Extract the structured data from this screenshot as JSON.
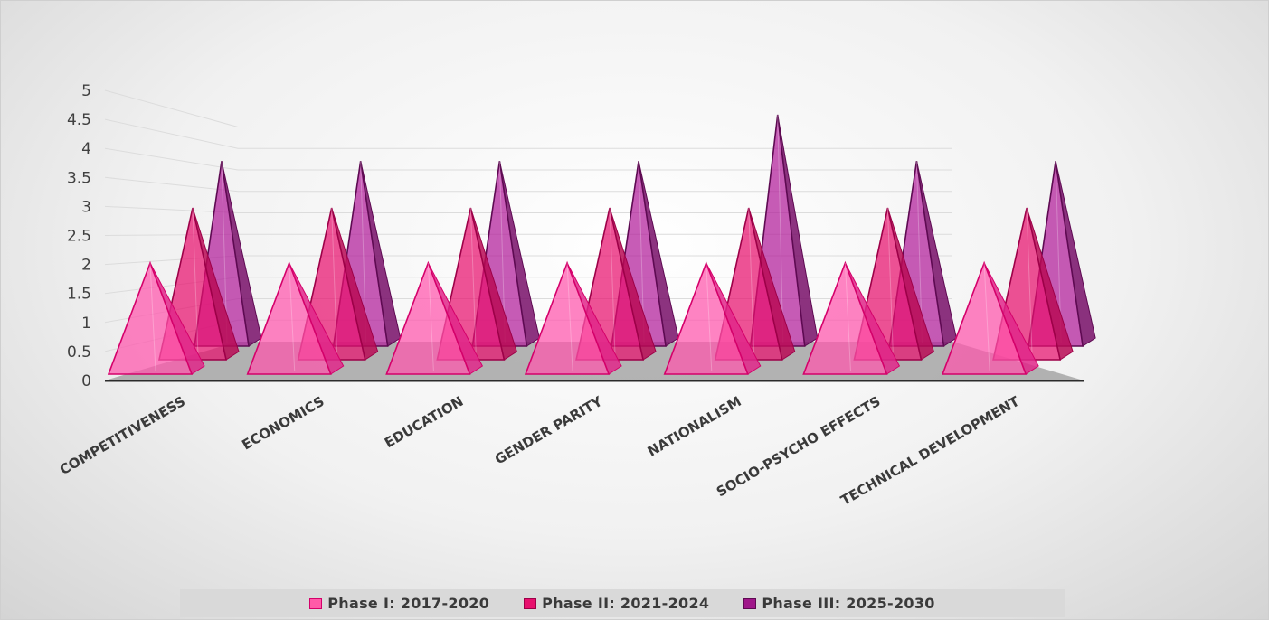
{
  "chart_data": {
    "type": "bar",
    "variant": "3d-pyramid",
    "categories": [
      "COMPETITIVENESS",
      "ECONOMICS",
      "EDUCATION",
      "GENDER PARITY",
      "NATIONALISM",
      "SOCIO-PSYCHO EFFECTS",
      "TECHNICAL DEVELOPMENT"
    ],
    "series": [
      {
        "name": "Phase I: 2017-2020",
        "values": [
          2,
          2,
          2,
          2,
          2,
          2,
          2
        ],
        "color": "#ff3f9d"
      },
      {
        "name": "Phase II: 2021-2024",
        "values": [
          3,
          3,
          3,
          3,
          3,
          3,
          3
        ],
        "color": "#e8106e"
      },
      {
        "name": "Phase III: 2025-2030",
        "values": [
          4,
          4,
          4,
          4,
          5,
          4,
          4
        ],
        "color": "#a0168a"
      }
    ],
    "y_ticks": [
      "0",
      "0.5",
      "1",
      "1.5",
      "2",
      "2.5",
      "3",
      "3.5",
      "4",
      "4.5",
      "5"
    ],
    "ylim": [
      0,
      5
    ],
    "grid": true,
    "legend_position": "bottom"
  }
}
